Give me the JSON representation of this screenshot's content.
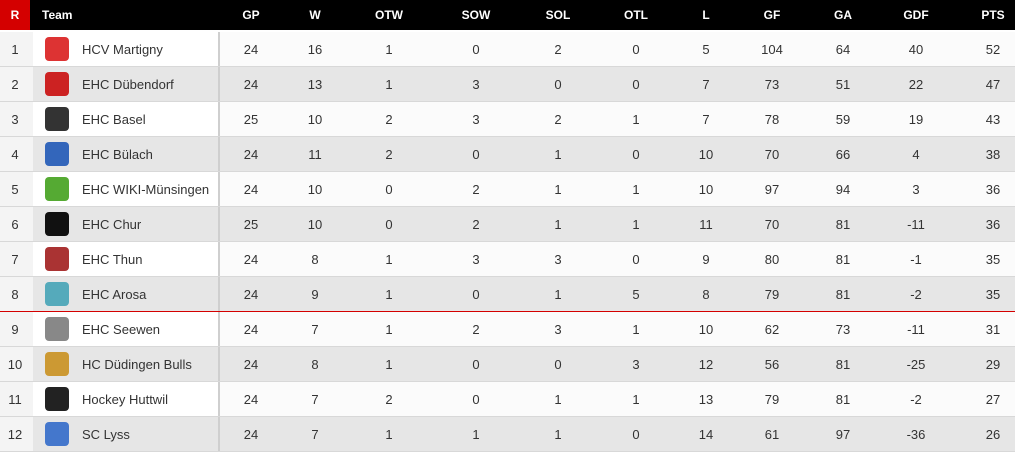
{
  "table": {
    "columns": [
      "R",
      "Team",
      "GP",
      "W",
      "OTW",
      "SOW",
      "SOL",
      "OTL",
      "L",
      "GF",
      "GA",
      "GDF",
      "PTS"
    ],
    "rows": [
      [
        1,
        "HCV Martigny",
        24,
        16,
        1,
        0,
        2,
        0,
        5,
        104,
        64,
        40,
        52
      ],
      [
        2,
        "EHC Dübendorf",
        24,
        13,
        1,
        3,
        0,
        0,
        7,
        73,
        51,
        22,
        47
      ],
      [
        3,
        "EHC Basel",
        25,
        10,
        2,
        3,
        2,
        1,
        7,
        78,
        59,
        19,
        43
      ],
      [
        4,
        "EHC Bülach",
        24,
        11,
        2,
        0,
        1,
        0,
        10,
        70,
        66,
        4,
        38
      ],
      [
        5,
        "EHC WIKI-Münsingen",
        24,
        10,
        0,
        2,
        1,
        1,
        10,
        97,
        94,
        3,
        36
      ],
      [
        6,
        "EHC Chur",
        25,
        10,
        0,
        2,
        1,
        1,
        11,
        70,
        81,
        -11,
        36
      ],
      [
        7,
        "EHC Thun",
        24,
        8,
        1,
        3,
        3,
        0,
        9,
        80,
        81,
        -1,
        35
      ],
      [
        8,
        "EHC Arosa",
        24,
        9,
        1,
        0,
        1,
        5,
        8,
        79,
        81,
        -2,
        35
      ],
      [
        9,
        "EHC Seewen",
        24,
        7,
        1,
        2,
        3,
        1,
        10,
        62,
        73,
        -11,
        31
      ],
      [
        10,
        "HC Düdingen Bulls",
        24,
        8,
        1,
        0,
        0,
        3,
        12,
        56,
        81,
        -25,
        29
      ],
      [
        11,
        "Hockey Huttwil",
        24,
        7,
        2,
        0,
        1,
        1,
        13,
        79,
        81,
        -2,
        27
      ],
      [
        12,
        "SC Lyss",
        24,
        7,
        1,
        1,
        1,
        0,
        14,
        61,
        97,
        -36,
        26
      ]
    ]
  }
}
